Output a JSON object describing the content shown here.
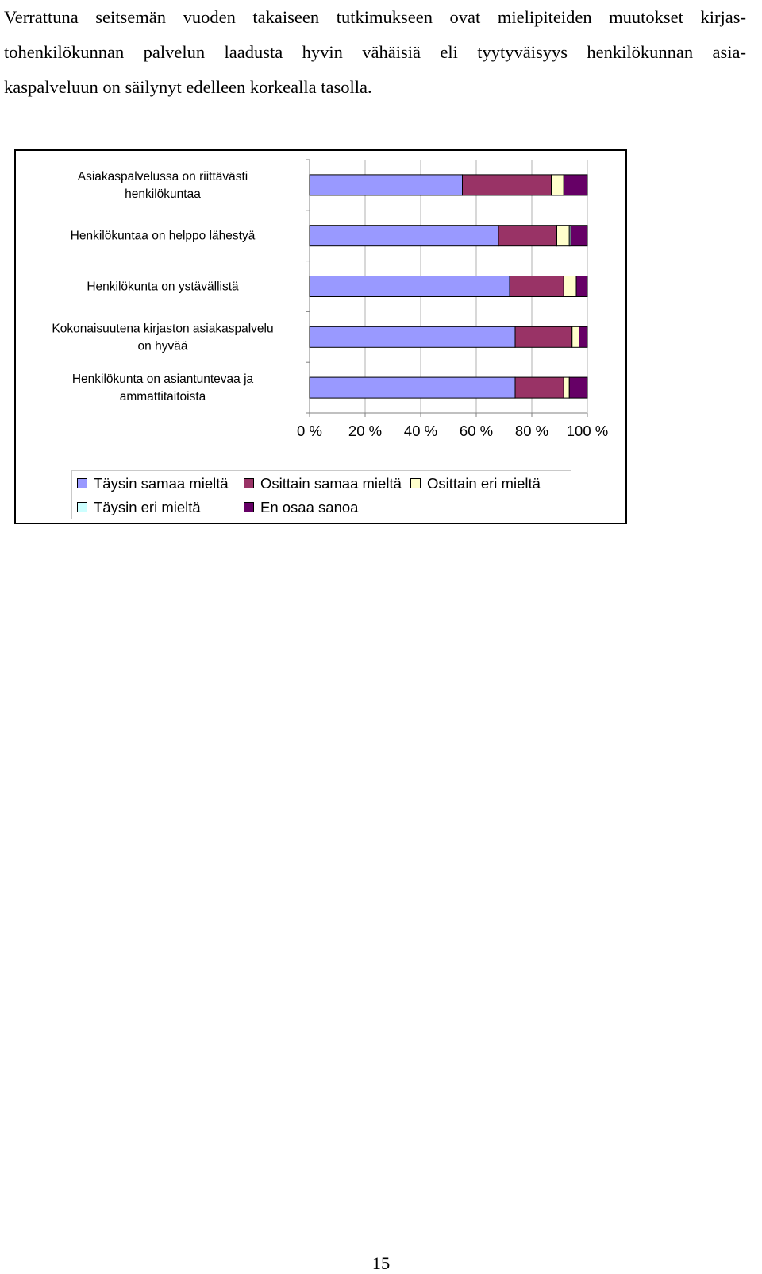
{
  "intro": {
    "lines": [
      "Verrattuna seitsemän vuoden takaiseen tutkimukseen ovat mielipiteiden muutokset kirjas-",
      "tohenkilökunnan palvelun laadusta hyvin vähäisiä eli tyytyväisyys henkilökunnan asia-",
      "kaspalveluun on säilynyt edelleen korkealla tasolla."
    ]
  },
  "chart_data": {
    "type": "bar",
    "orientation": "horizontal",
    "stacked": "percent",
    "title": "",
    "xlabel": "",
    "ylabel": "",
    "xlim": [
      0,
      100
    ],
    "x_ticks": [
      "0 %",
      "20 %",
      "40 %",
      "60 %",
      "80 %",
      "100 %"
    ],
    "categories": [
      "Asiakaspalvelussa on riittävästi henkilökuntaa",
      "Henkilökuntaa on helppo lähestyä",
      "Henkilökunta on ystävällistä",
      "Kokonaisuutena kirjaston asiakaspalvelu on hyvää",
      "Henkilökunta on asiantuntevaa ja ammattitaitoista"
    ],
    "series": [
      {
        "name": "Täysin samaa mieltä",
        "color": "#9999ff",
        "values": [
          55,
          68,
          72,
          74,
          74
        ]
      },
      {
        "name": "Osittain samaa mieltä",
        "color": "#993366",
        "values": [
          32,
          21,
          19.5,
          20.5,
          17.5
        ]
      },
      {
        "name": "Osittain eri mieltä",
        "color": "#ffffcc",
        "values": [
          4.5,
          4.5,
          4.5,
          2.5,
          2
        ]
      },
      {
        "name": "Täysin eri mieltä",
        "color": "#ccffff",
        "values": [
          0,
          0.5,
          0,
          0,
          0
        ]
      },
      {
        "name": "En osaa sanoa",
        "color": "#660066",
        "values": [
          8.5,
          6,
          4,
          3,
          6.5
        ]
      }
    ],
    "legend_position": "bottom",
    "grid": true
  },
  "legend": {
    "items": [
      "Täysin samaa mieltä",
      "Osittain samaa mieltä",
      "Osittain eri mieltä",
      "Täysin eri mieltä",
      "En osaa sanoa"
    ]
  },
  "page": {
    "number": "15"
  }
}
